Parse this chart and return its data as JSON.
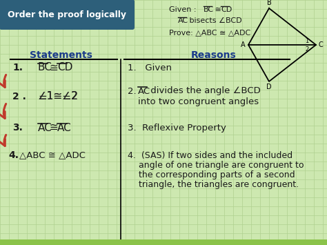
{
  "bg_color": "#cde8b0",
  "grid_color": "#b0d090",
  "title_box_color": "#2d5f7a",
  "title_text": "Order the proof logically",
  "title_text_color": "#ffffff",
  "statements_header": "Statements",
  "reasons_header": "Reasons",
  "arrow_color": "#c0392b",
  "text_color": "#1a1a1a",
  "overline_color": "#1a1a1a",
  "bottom_bar_color": "#8bc34a",
  "fig_w": 4.74,
  "fig_h": 3.55,
  "dpi": 100
}
